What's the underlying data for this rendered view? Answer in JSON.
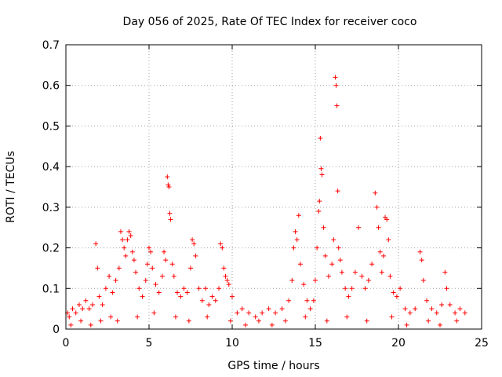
{
  "chart_data": {
    "type": "scatter",
    "title": "Day 056 of 2025, Rate Of TEC Index for receiver coco",
    "xlabel": "GPS time / hours",
    "ylabel": "ROTI / TECUs",
    "xlim": [
      0,
      25
    ],
    "ylim": [
      0,
      0.7
    ],
    "xticks": [
      0,
      5,
      10,
      15,
      20,
      25
    ],
    "yticks": [
      0,
      0.1,
      0.2,
      0.3,
      0.4,
      0.5,
      0.6,
      0.7
    ],
    "grid": true,
    "marker": "+",
    "color": "#ff0000",
    "series": [
      {
        "points": [
          [
            0.1,
            0.04
          ],
          [
            0.2,
            0.03
          ],
          [
            0.4,
            0.05
          ],
          [
            0.6,
            0.04
          ],
          [
            0.8,
            0.06
          ],
          [
            1.0,
            0.05
          ],
          [
            1.2,
            0.07
          ],
          [
            1.4,
            0.05
          ],
          [
            1.6,
            0.06
          ],
          [
            1.8,
            0.21
          ],
          [
            1.9,
            0.15
          ],
          [
            2.0,
            0.08
          ],
          [
            2.2,
            0.06
          ],
          [
            2.4,
            0.1
          ],
          [
            2.6,
            0.13
          ],
          [
            2.8,
            0.09
          ],
          [
            3.0,
            0.12
          ],
          [
            3.2,
            0.15
          ],
          [
            3.3,
            0.24
          ],
          [
            3.4,
            0.22
          ],
          [
            3.5,
            0.2
          ],
          [
            3.6,
            0.18
          ],
          [
            3.7,
            0.22
          ],
          [
            3.8,
            0.24
          ],
          [
            3.9,
            0.23
          ],
          [
            4.0,
            0.19
          ],
          [
            4.1,
            0.17
          ],
          [
            4.2,
            0.14
          ],
          [
            4.4,
            0.1
          ],
          [
            4.6,
            0.08
          ],
          [
            4.8,
            0.12
          ],
          [
            4.9,
            0.16
          ],
          [
            5.0,
            0.2
          ],
          [
            5.1,
            0.19
          ],
          [
            5.2,
            0.15
          ],
          [
            5.4,
            0.11
          ],
          [
            5.6,
            0.09
          ],
          [
            5.8,
            0.13
          ],
          [
            5.9,
            0.19
          ],
          [
            6.0,
            0.17
          ],
          [
            6.1,
            0.375
          ],
          [
            6.15,
            0.355
          ],
          [
            6.2,
            0.35
          ],
          [
            6.25,
            0.285
          ],
          [
            6.3,
            0.27
          ],
          [
            6.4,
            0.16
          ],
          [
            6.5,
            0.13
          ],
          [
            6.7,
            0.09
          ],
          [
            6.9,
            0.08
          ],
          [
            7.1,
            0.1
          ],
          [
            7.3,
            0.09
          ],
          [
            7.5,
            0.15
          ],
          [
            7.6,
            0.22
          ],
          [
            7.7,
            0.21
          ],
          [
            7.8,
            0.18
          ],
          [
            8.0,
            0.1
          ],
          [
            8.2,
            0.07
          ],
          [
            8.4,
            0.1
          ],
          [
            8.6,
            0.06
          ],
          [
            8.8,
            0.08
          ],
          [
            9.0,
            0.07
          ],
          [
            9.2,
            0.1
          ],
          [
            9.3,
            0.21
          ],
          [
            9.4,
            0.2
          ],
          [
            9.5,
            0.15
          ],
          [
            9.6,
            0.13
          ],
          [
            9.7,
            0.12
          ],
          [
            9.8,
            0.11
          ],
          [
            10.0,
            0.08
          ],
          [
            10.3,
            0.04
          ],
          [
            10.6,
            0.05
          ],
          [
            11.0,
            0.04
          ],
          [
            11.4,
            0.03
          ],
          [
            11.8,
            0.04
          ],
          [
            12.2,
            0.05
          ],
          [
            12.6,
            0.04
          ],
          [
            13.0,
            0.05
          ],
          [
            13.4,
            0.07
          ],
          [
            13.6,
            0.12
          ],
          [
            13.7,
            0.2
          ],
          [
            13.8,
            0.24
          ],
          [
            13.9,
            0.22
          ],
          [
            14.0,
            0.28
          ],
          [
            14.1,
            0.16
          ],
          [
            14.3,
            0.11
          ],
          [
            14.5,
            0.07
          ],
          [
            14.7,
            0.05
          ],
          [
            14.9,
            0.07
          ],
          [
            15.0,
            0.12
          ],
          [
            15.1,
            0.2
          ],
          [
            15.2,
            0.29
          ],
          [
            15.25,
            0.315
          ],
          [
            15.3,
            0.47
          ],
          [
            15.35,
            0.395
          ],
          [
            15.4,
            0.38
          ],
          [
            15.5,
            0.25
          ],
          [
            15.6,
            0.18
          ],
          [
            15.8,
            0.13
          ],
          [
            16.0,
            0.16
          ],
          [
            16.1,
            0.22
          ],
          [
            16.2,
            0.62
          ],
          [
            16.25,
            0.6
          ],
          [
            16.3,
            0.55
          ],
          [
            16.35,
            0.34
          ],
          [
            16.4,
            0.2
          ],
          [
            16.5,
            0.17
          ],
          [
            16.6,
            0.14
          ],
          [
            16.8,
            0.1
          ],
          [
            17.0,
            0.08
          ],
          [
            17.2,
            0.1
          ],
          [
            17.4,
            0.14
          ],
          [
            17.6,
            0.25
          ],
          [
            17.8,
            0.13
          ],
          [
            18.0,
            0.1
          ],
          [
            18.2,
            0.12
          ],
          [
            18.4,
            0.16
          ],
          [
            18.6,
            0.335
          ],
          [
            18.7,
            0.3
          ],
          [
            18.8,
            0.25
          ],
          [
            18.9,
            0.19
          ],
          [
            19.0,
            0.14
          ],
          [
            19.1,
            0.18
          ],
          [
            19.2,
            0.275
          ],
          [
            19.3,
            0.27
          ],
          [
            19.4,
            0.22
          ],
          [
            19.5,
            0.13
          ],
          [
            19.7,
            0.09
          ],
          [
            19.9,
            0.08
          ],
          [
            20.1,
            0.1
          ],
          [
            20.4,
            0.05
          ],
          [
            20.7,
            0.04
          ],
          [
            21.0,
            0.05
          ],
          [
            21.3,
            0.19
          ],
          [
            21.4,
            0.17
          ],
          [
            21.5,
            0.12
          ],
          [
            21.7,
            0.07
          ],
          [
            22.0,
            0.05
          ],
          [
            22.3,
            0.04
          ],
          [
            22.6,
            0.06
          ],
          [
            22.8,
            0.14
          ],
          [
            22.9,
            0.1
          ],
          [
            23.1,
            0.06
          ],
          [
            23.4,
            0.04
          ],
          [
            23.7,
            0.05
          ],
          [
            24.0,
            0.04
          ],
          [
            0.3,
            0.01
          ],
          [
            0.9,
            0.02
          ],
          [
            1.5,
            0.01
          ],
          [
            2.1,
            0.02
          ],
          [
            2.7,
            0.03
          ],
          [
            3.1,
            0.02
          ],
          [
            4.3,
            0.03
          ],
          [
            5.3,
            0.04
          ],
          [
            6.6,
            0.03
          ],
          [
            7.4,
            0.02
          ],
          [
            8.5,
            0.03
          ],
          [
            9.9,
            0.02
          ],
          [
            10.8,
            0.01
          ],
          [
            11.6,
            0.02
          ],
          [
            12.4,
            0.01
          ],
          [
            13.2,
            0.02
          ],
          [
            14.4,
            0.03
          ],
          [
            15.7,
            0.02
          ],
          [
            16.9,
            0.03
          ],
          [
            18.1,
            0.02
          ],
          [
            19.6,
            0.03
          ],
          [
            20.5,
            0.01
          ],
          [
            21.8,
            0.02
          ],
          [
            22.5,
            0.01
          ],
          [
            23.5,
            0.02
          ]
        ]
      }
    ]
  }
}
